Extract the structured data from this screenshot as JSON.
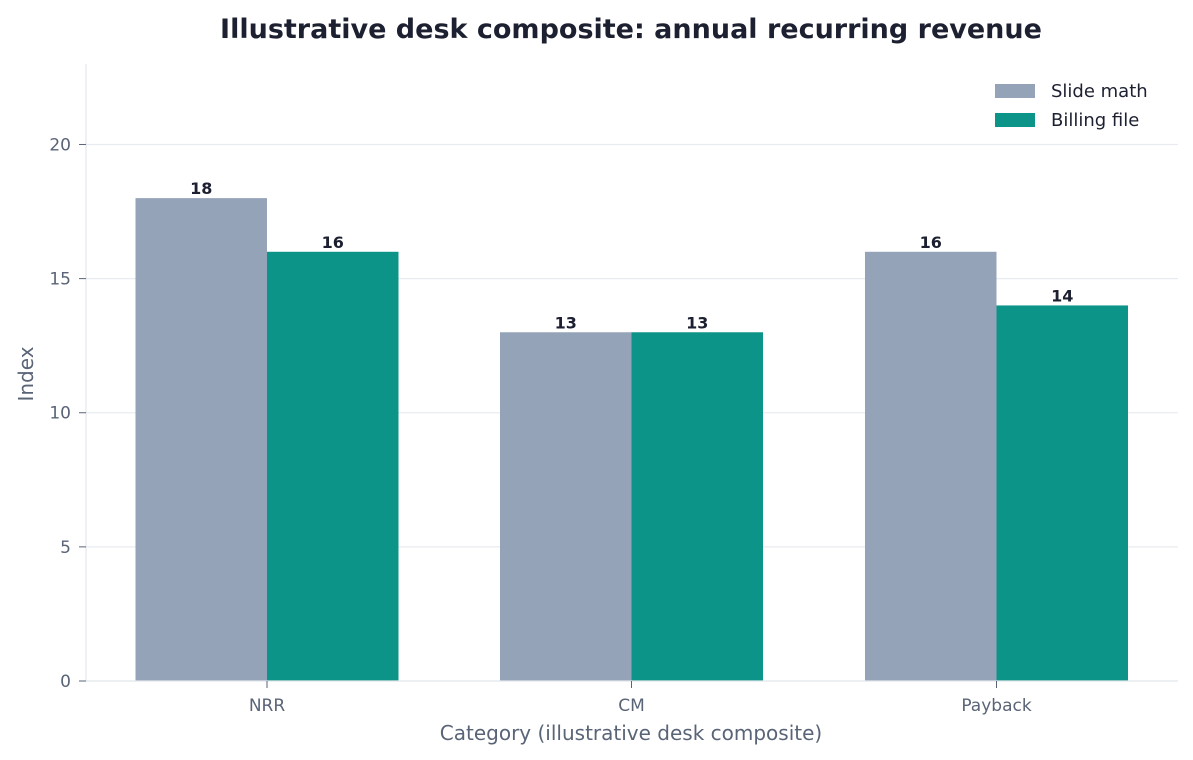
{
  "chart_data": {
    "type": "bar",
    "title": "Illustrative desk composite: annual recurring revenue",
    "xlabel": "Category (illustrative desk composite)",
    "ylabel": "Index",
    "categories": [
      "NRR",
      "CM",
      "Payback"
    ],
    "series": [
      {
        "name": "Slide math",
        "values": [
          18,
          13,
          16
        ],
        "color": "#94a3b8"
      },
      {
        "name": "Billing file",
        "values": [
          16,
          13,
          14
        ],
        "color": "#0d9488"
      }
    ],
    "ylim": [
      0,
      23
    ],
    "yticks": [
      0,
      5,
      10,
      15,
      20
    ],
    "grid": true,
    "legend_position": "top-right"
  }
}
